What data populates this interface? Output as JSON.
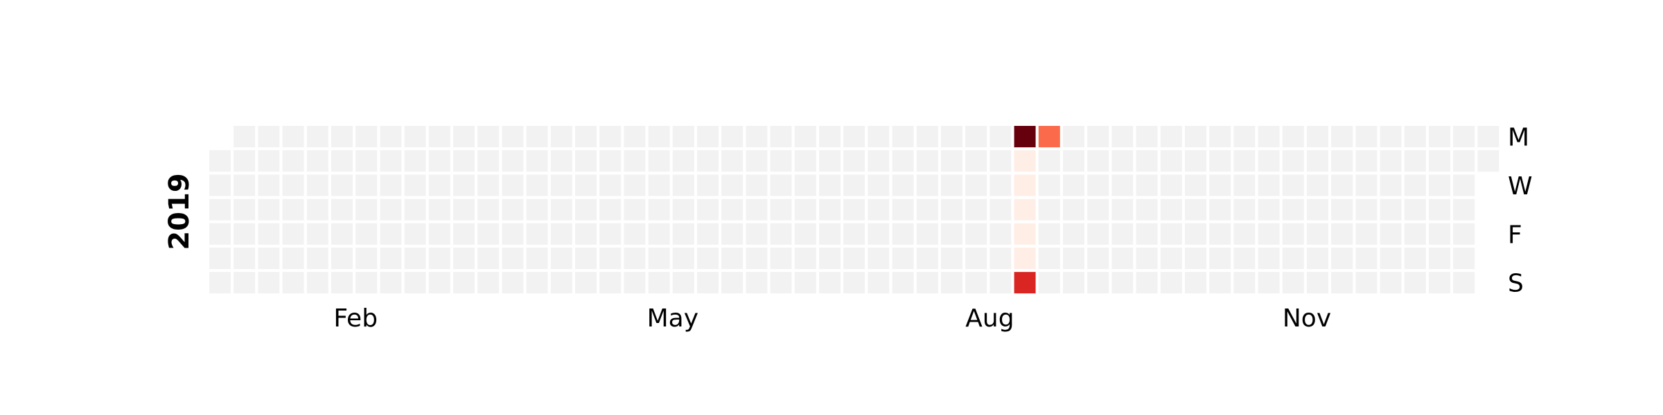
{
  "chart_data": {
    "type": "heatmap",
    "subtype": "calendar",
    "year_label": "2019",
    "start_date": "2019-01-01",
    "end_date": "2019-12-31",
    "month_labels": [
      {
        "label": "Feb",
        "date": "2019-02-01"
      },
      {
        "label": "May",
        "date": "2019-05-01"
      },
      {
        "label": "Aug",
        "date": "2019-08-01"
      },
      {
        "label": "Nov",
        "date": "2019-11-01"
      }
    ],
    "day_labels": [
      {
        "label": "M",
        "weekday": 0
      },
      {
        "label": "W",
        "weekday": 2
      },
      {
        "label": "F",
        "weekday": 4
      },
      {
        "label": "S",
        "weekday": 6
      }
    ],
    "colorscale": "Reds",
    "values": [
      {
        "date": "2019-08-19",
        "value": 10
      },
      {
        "date": "2019-08-20",
        "value": 0.4
      },
      {
        "date": "2019-08-21",
        "value": 0.4
      },
      {
        "date": "2019-08-22",
        "value": 0.4
      },
      {
        "date": "2019-08-23",
        "value": 0.4
      },
      {
        "date": "2019-08-24",
        "value": 0.4
      },
      {
        "date": "2019-08-25",
        "value": 7
      },
      {
        "date": "2019-08-26",
        "value": 5
      }
    ],
    "value_max": 10,
    "empty_color": "#f2f2f2",
    "legend": false
  }
}
